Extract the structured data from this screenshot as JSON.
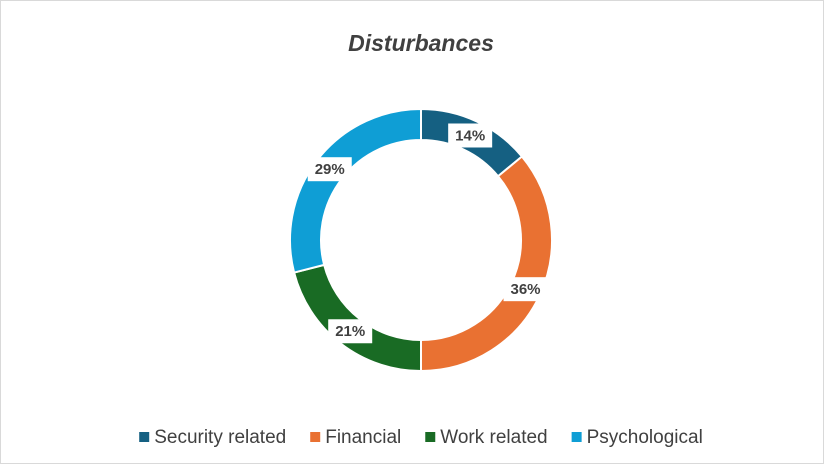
{
  "chart_data": {
    "type": "pie",
    "title": "Disturbances",
    "categories": [
      "Security related",
      "Financial",
      "Work related",
      "Psychological"
    ],
    "values": [
      14,
      36,
      21,
      29
    ],
    "value_labels": [
      "14%",
      "36%",
      "21%",
      "29%"
    ],
    "colors": [
      "#156082",
      "#e97132",
      "#196b24",
      "#0f9ed5"
    ],
    "donut": true,
    "legend": "bottom"
  }
}
